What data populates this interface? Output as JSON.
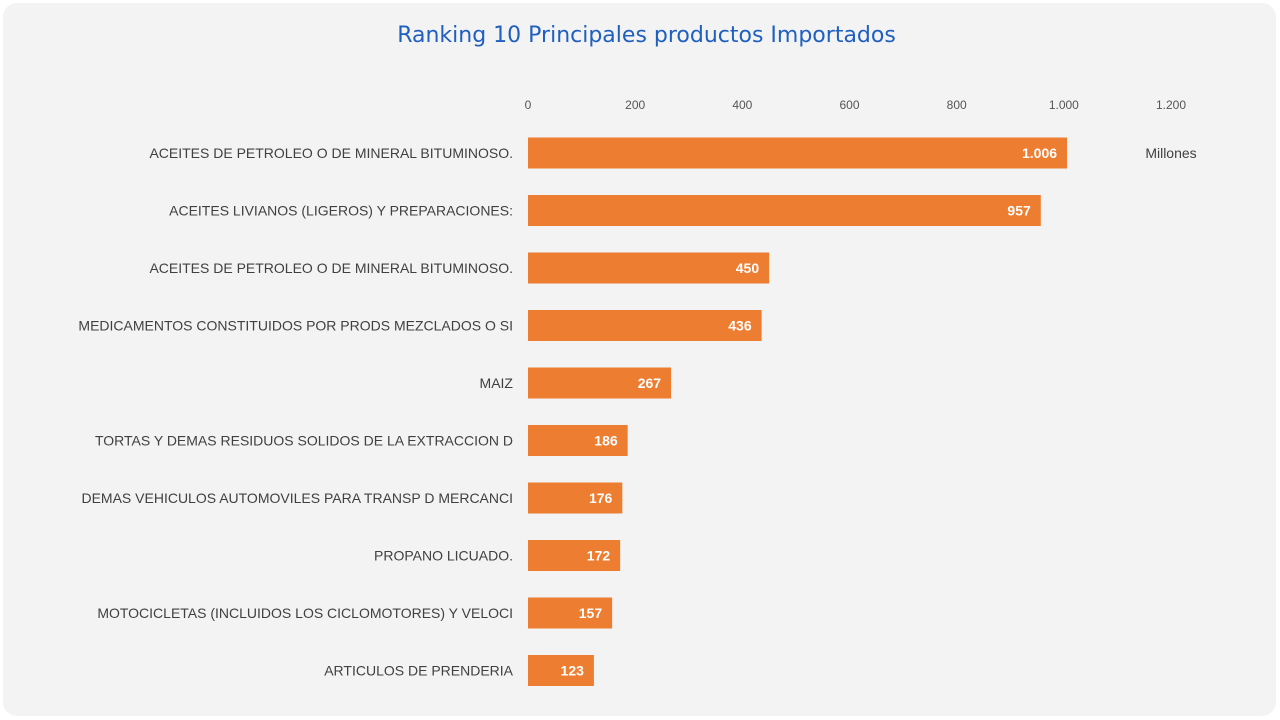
{
  "chart_data": {
    "type": "bar",
    "orientation": "horizontal",
    "title": "Ranking 10 Principales productos Importados",
    "xlabel": "",
    "ylabel": "",
    "unit_label": "Millones",
    "xlim": [
      0,
      1200
    ],
    "x_ticks": [
      0,
      200,
      400,
      600,
      800,
      1000,
      1200
    ],
    "x_tick_labels": [
      "0",
      "200",
      "400",
      "600",
      "800",
      "1.000",
      "1.200"
    ],
    "axis_position": "top",
    "grid": false,
    "legend": "none",
    "bar_color": "#ed7d31",
    "title_color": "#1f5fbf",
    "categories": [
      "ACEITES DE PETROLEO O DE MINERAL BITUMINOSO.",
      "ACEITES LIVIANOS (LIGEROS) Y PREPARACIONES:",
      "ACEITES DE PETROLEO O DE MINERAL BITUMINOSO.",
      "MEDICAMENTOS CONSTITUIDOS POR PRODS MEZCLADOS O SI",
      "MAIZ",
      "TORTAS Y DEMAS RESIDUOS SOLIDOS DE LA EXTRACCION D",
      "DEMAS VEHICULOS AUTOMOVILES PARA TRANSP D MERCANCI",
      "PROPANO LICUADO.",
      "MOTOCICLETAS (INCLUIDOS LOS CICLOMOTORES) Y VELOCI",
      "ARTICULOS DE PRENDERIA"
    ],
    "values": [
      1006,
      957,
      450,
      436,
      267,
      186,
      176,
      172,
      157,
      123
    ],
    "value_labels": [
      "1.006",
      "957",
      "450",
      "436",
      "267",
      "186",
      "176",
      "172",
      "157",
      "123"
    ]
  }
}
